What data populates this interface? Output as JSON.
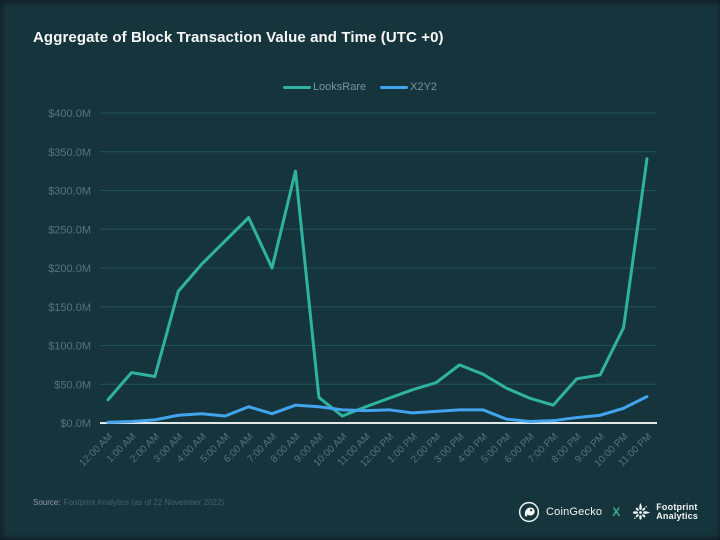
{
  "slide": {
    "source_label": "Source:",
    "source_text": "Footprint Analytics (as of 22 November 2022)",
    "footer": {
      "coingecko_label": "CoinGecko",
      "separator": "X",
      "footprint_line1": "Footprint",
      "footprint_line2": "Analytics"
    },
    "colors": {
      "background": "#16343c",
      "grid": "#21525a",
      "baseline": "#ffffff",
      "axis_label": "#54747d",
      "title_text": "#f6f8f8",
      "legend_text": "#7b939c",
      "separator_x": "#3aa98c"
    }
  },
  "chart_data": {
    "type": "line",
    "title": "Aggregate of Block Transaction Value and Time (UTC +0)",
    "xlabel": "",
    "ylabel": "",
    "ylim": [
      0,
      400
    ],
    "y_tick_step": 50,
    "y_ticks": [
      "$400.0M",
      "$350.0M",
      "$300.0M",
      "$250.0M",
      "$200.0M",
      "$150.0M",
      "$100.0M",
      "$50.0M",
      "$0.0M"
    ],
    "grid": "horizontal",
    "legend_position": "top-center",
    "x": [
      "12:00 AM",
      "1:00 AM",
      "2:00 AM",
      "3:00 AM",
      "4:00 AM",
      "5:00 AM",
      "6:00 AM",
      "7:00 AM",
      "8:00 AM",
      "9:00 AM",
      "10:00 AM",
      "11:00 AM",
      "12:00 PM",
      "1:00 PM",
      "2:00 PM",
      "3:00 PM",
      "4:00 PM",
      "5:00 PM",
      "6:00 PM",
      "7:00 PM",
      "8:00 PM",
      "9:00 PM",
      "10:00 PM",
      "11:00 PM"
    ],
    "series": [
      {
        "name": "LooksRare",
        "color": "#2fb3a0",
        "unit": "USD millions",
        "values": [
          30,
          65,
          60,
          170,
          205,
          235,
          265,
          200,
          325,
          33,
          9,
          21,
          32,
          43,
          52,
          75,
          63,
          45,
          32,
          23,
          57,
          62,
          123,
          341
        ]
      },
      {
        "name": "X2Y2",
        "color": "#42a4ec",
        "unit": "USD millions",
        "values": [
          1,
          2,
          4,
          10,
          12,
          9,
          21,
          12,
          23,
          21,
          17,
          16,
          17,
          13,
          15,
          17,
          17,
          5,
          2,
          3,
          7,
          10,
          19,
          34
        ]
      }
    ]
  }
}
